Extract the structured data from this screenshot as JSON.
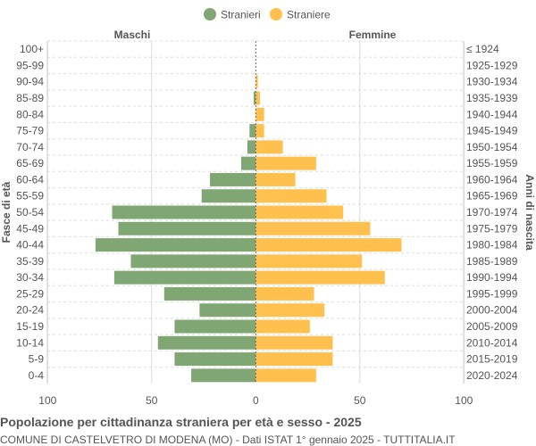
{
  "chart_data": {
    "type": "bar",
    "orientation": "horizontal-pyramid",
    "title": "Popolazione per cittadinanza straniera per età e sesso - 2025",
    "subtitle": "COMUNE DI CASTELVETRO DI MODENA (MO) - Dati ISTAT 1° gennaio 2025 - TUTTITALIA.IT",
    "ylabel_left": "Fasce di età",
    "ylabel_right": "Anni di nascita",
    "left_header": "Maschi",
    "right_header": "Femmine",
    "xlim": [
      -100,
      100
    ],
    "x_ticks": [
      "100",
      "50",
      "0",
      "50",
      "100"
    ],
    "grid": true,
    "legend_position": "top",
    "categories": [
      "100+",
      "95-99",
      "90-94",
      "85-89",
      "80-84",
      "75-79",
      "70-74",
      "65-69",
      "60-64",
      "55-59",
      "50-54",
      "45-49",
      "40-44",
      "35-39",
      "30-34",
      "25-29",
      "20-24",
      "15-19",
      "10-14",
      "5-9",
      "0-4"
    ],
    "birth_years": [
      "≤ 1924",
      "1925-1929",
      "1930-1934",
      "1935-1939",
      "1940-1944",
      "1945-1949",
      "1950-1954",
      "1955-1959",
      "1960-1964",
      "1965-1969",
      "1970-1974",
      "1975-1979",
      "1980-1984",
      "1985-1989",
      "1990-1994",
      "1995-1999",
      "2000-2004",
      "2005-2009",
      "2010-2014",
      "2015-2019",
      "2020-2024"
    ],
    "series": [
      {
        "name": "Stranieri",
        "color": "#7fa673",
        "values": [
          0,
          0,
          0,
          1,
          0,
          3,
          4,
          7,
          22,
          26,
          69,
          66,
          77,
          60,
          68,
          44,
          27,
          39,
          47,
          39,
          31
        ]
      },
      {
        "name": "Straniere",
        "color": "#ffc04d",
        "values": [
          0,
          0,
          1,
          2,
          4,
          4,
          13,
          29,
          19,
          34,
          42,
          55,
          70,
          51,
          62,
          28,
          33,
          26,
          37,
          37,
          29
        ]
      }
    ]
  }
}
